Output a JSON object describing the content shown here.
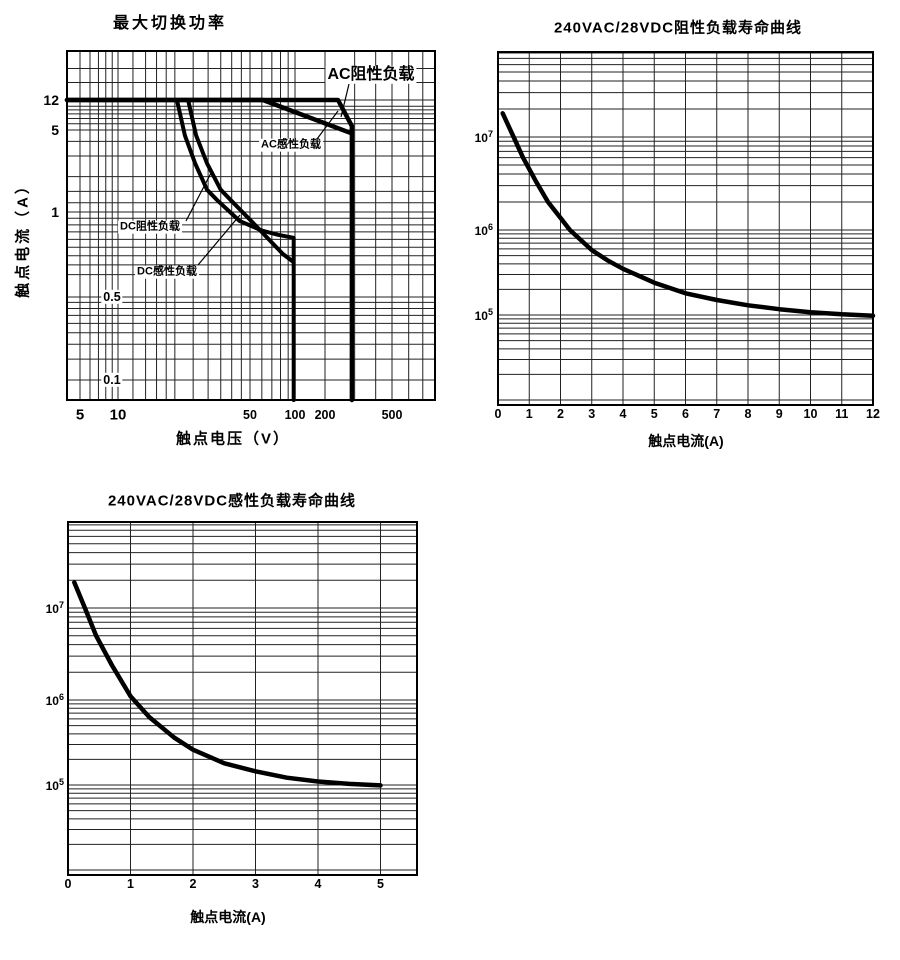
{
  "colors": {
    "ink": "#000000",
    "grid": "#222222",
    "background": "#ffffff"
  },
  "chart_data": {
    "note": "three relay datasheet charts, see charts[]"
  },
  "charts": [
    {
      "type": "line",
      "title": "最大切换功率",
      "xlabel": "触点电压（V）",
      "ylabel": "触点电流（A）",
      "x_scale": "log",
      "y_scale": "log",
      "x_ticks": [
        5,
        10,
        50,
        100,
        200,
        500
      ],
      "y_ticks": [
        12,
        5,
        1,
        0.5,
        0.1
      ],
      "x_range": [
        4,
        800
      ],
      "y_range": [
        0.068,
        50
      ],
      "series": [
        {
          "name": "AC阻性负载",
          "points": [
            [
              4,
              12
            ],
            [
              239,
              12
            ],
            [
              289,
              5.6
            ],
            [
              289,
              0.068
            ]
          ]
        },
        {
          "name": "AC感性负载",
          "points": [
            [
              4,
              12
            ],
            [
              61,
              12
            ],
            [
              286,
              4.7
            ]
          ]
        },
        {
          "name": "DC阻性负载",
          "points": [
            [
              20.5,
              12
            ],
            [
              22.6,
              4.5
            ],
            [
              25.6,
              2.6
            ],
            [
              29.6,
              1.55
            ],
            [
              33.5,
              1.26
            ],
            [
              44,
              0.93
            ],
            [
              60,
              0.86
            ],
            [
              77,
              0.83
            ],
            [
              98,
              0.81
            ],
            [
              98,
              0.068
            ]
          ]
        },
        {
          "name": "DC感性负载",
          "points": [
            [
              23.5,
              12
            ],
            [
              25.9,
              4.5
            ],
            [
              29.6,
              2.6
            ],
            [
              35,
              1.55
            ],
            [
              40.6,
              1.21
            ],
            [
              54,
              0.9
            ],
            [
              70,
              0.78
            ],
            [
              83,
              0.71
            ],
            [
              96,
              0.67
            ]
          ]
        }
      ]
    },
    {
      "type": "line",
      "title": "240VAC/28VDC阻性负载寿命曲线",
      "xlabel": "触点电流(A)",
      "ylabel": "",
      "x_scale": "linear",
      "y_scale": "log",
      "x_ticks": [
        0,
        1,
        2,
        3,
        4,
        5,
        6,
        7,
        8,
        9,
        10,
        11,
        12
      ],
      "y_ticks_exp": [
        7,
        6,
        5
      ],
      "x_range": [
        0,
        12
      ],
      "y_range": [
        10000.0,
        100000000.0
      ],
      "series": [
        {
          "name": "寿命曲线",
          "points": [
            [
              0.15,
              18000000.0
            ],
            [
              0.5,
              10000000.0
            ],
            [
              0.8,
              6000000.0
            ],
            [
              1.2,
              3400000.0
            ],
            [
              1.6,
              2000000.0
            ],
            [
              2.0,
              1350000.0
            ],
            [
              2.3,
              1000000.0
            ],
            [
              3.0,
              580000.0
            ],
            [
              3.5,
              440000.0
            ],
            [
              4.0,
              350000.0
            ],
            [
              5.0,
              240000.0
            ],
            [
              6.0,
              180000.0
            ],
            [
              7.0,
              150000.0
            ],
            [
              8.0,
              130000.0
            ],
            [
              9.0,
              117000.0
            ],
            [
              10.0,
              108000.0
            ],
            [
              11.0,
              102000.0
            ],
            [
              12.0,
              98000.0
            ]
          ]
        }
      ]
    },
    {
      "type": "line",
      "title": "240VAC/28VDC感性负载寿命曲线",
      "xlabel": "触点电流(A)",
      "ylabel": "",
      "x_scale": "linear",
      "y_scale": "log",
      "x_ticks": [
        0,
        1,
        2,
        3,
        4,
        5
      ],
      "y_ticks_exp": [
        7,
        6,
        5
      ],
      "x_range": [
        0,
        5.6
      ],
      "y_range": [
        10000.0,
        100000000.0
      ],
      "series": [
        {
          "name": "寿命曲线",
          "points": [
            [
              0.1,
              19000000.0
            ],
            [
              0.27,
              10000000.0
            ],
            [
              0.45,
              5000000.0
            ],
            [
              0.7,
              2400000.0
            ],
            [
              1.0,
              1100000.0
            ],
            [
              1.3,
              630000.0
            ],
            [
              1.7,
              360000.0
            ],
            [
              2.0,
              260000.0
            ],
            [
              2.5,
              180000.0
            ],
            [
              3.0,
              145000.0
            ],
            [
              3.5,
              122000.0
            ],
            [
              4.0,
              110000.0
            ],
            [
              4.5,
              103000.0
            ],
            [
              5.0,
              99000.0
            ]
          ]
        }
      ]
    }
  ]
}
